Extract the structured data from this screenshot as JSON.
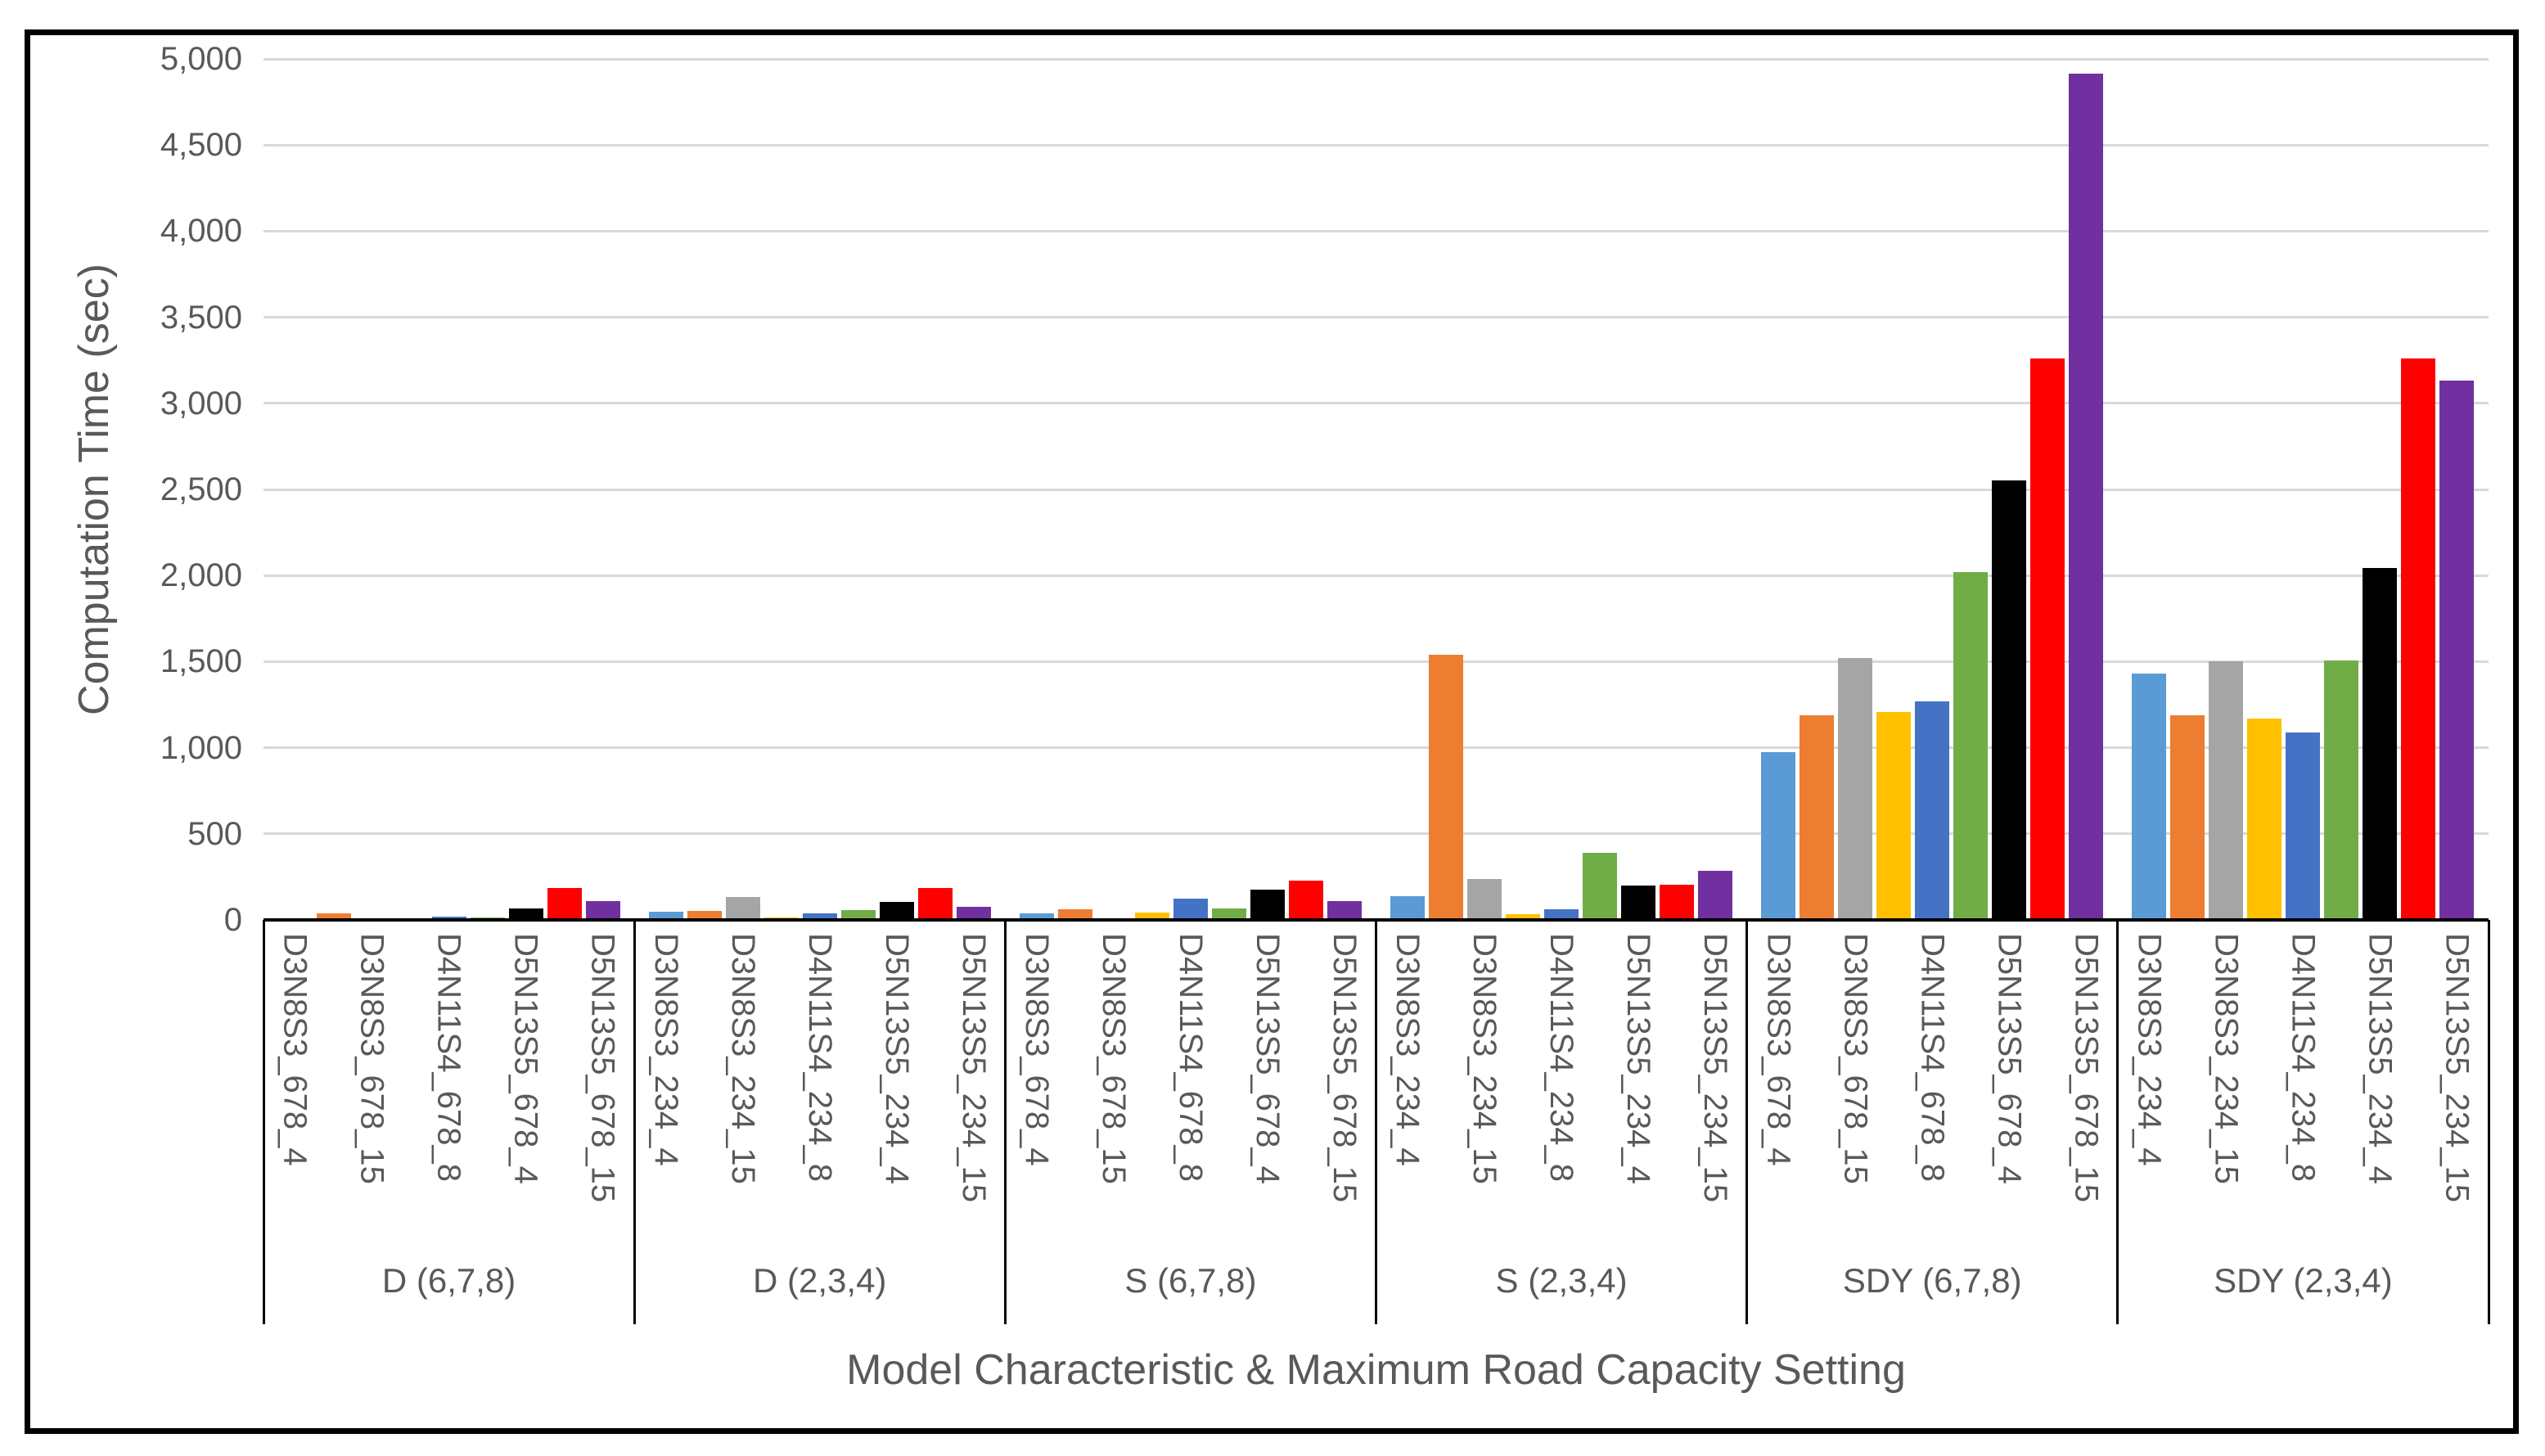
{
  "chart_data": {
    "type": "bar",
    "title": "",
    "xlabel": "Model Characteristic & Maximum Road Capacity Setting",
    "ylabel": "Computation Time (sec)",
    "ylim": [
      0,
      5000
    ],
    "ytick_interval": 500,
    "ytick_values": [
      0,
      500,
      1000,
      1500,
      2000,
      2500,
      3000,
      3500,
      4000,
      4500,
      5000
    ],
    "ytick_labels": [
      "0",
      "500",
      "1,000",
      "1,500",
      "2,000",
      "2,500",
      "3,000",
      "3,500",
      "4,000",
      "4,500",
      "5,000"
    ],
    "grid": true,
    "legend": false,
    "bars_per_group": 9,
    "visible_tick_positions": [
      0,
      2,
      4,
      6,
      8
    ],
    "bar_colors": [
      "#5B9BD5",
      "#ED7D31",
      "#A5A5A5",
      "#FFC000",
      "#4472C4",
      "#70AD47",
      "#000000",
      "#FF0000",
      "#7030A0"
    ],
    "groups": [
      {
        "label": "D (6,7,8)",
        "tick_labels": [
          "D3N8S3_678_4",
          "D3N8S3_678_15",
          "D4N11S4_678_8",
          "D5N13S5_678_4",
          "D5N13S5_678_15"
        ],
        "values": [
          4,
          40,
          3,
          3,
          20,
          12,
          65,
          185,
          110
        ]
      },
      {
        "label": "D (2,3,4)",
        "tick_labels": [
          "D3N8S3_234_4",
          "D3N8S3_234_15",
          "D4N11S4_234_8",
          "D5N13S5_234_4",
          "D5N13S5_234_15"
        ],
        "values": [
          48,
          52,
          135,
          15,
          40,
          57,
          105,
          185,
          78
        ]
      },
      {
        "label": "S (6,7,8)",
        "tick_labels": [
          "D3N8S3_678_4",
          "D3N8S3_678_15",
          "D4N11S4_678_8",
          "D5N13S5_678_4",
          "D5N13S5_678_15"
        ],
        "values": [
          37,
          62,
          10,
          44,
          122,
          65,
          175,
          230,
          110
        ]
      },
      {
        "label": "S (2,3,4)",
        "tick_labels": [
          "D3N8S3_234_4",
          "D3N8S3_234_15",
          "D4N11S4_234_8",
          "D5N13S5_234_4",
          "D5N13S5_234_15"
        ],
        "values": [
          140,
          1540,
          240,
          35,
          63,
          390,
          200,
          205,
          283
        ]
      },
      {
        "label": "SDY (6,7,8)",
        "tick_labels": [
          "D3N8S3_678_4",
          "D3N8S3_678_15",
          "D4N11S4_678_8",
          "D5N13S5_678_4",
          "D5N13S5_678_15"
        ],
        "values": [
          975,
          1190,
          1520,
          1205,
          1270,
          2020,
          2550,
          3260,
          4915
        ]
      },
      {
        "label": "SDY (2,3,4)",
        "tick_labels": [
          "D3N8S3_234_4",
          "D3N8S3_234_15",
          "D4N11S4_234_8",
          "D5N13S5_234_4",
          "D5N13S5_234_15"
        ],
        "values": [
          1430,
          1190,
          1500,
          1170,
          1090,
          1505,
          2045,
          3260,
          3130
        ]
      }
    ],
    "colors": {
      "text": "#595959",
      "gridline": "#D9D9D9",
      "axis_line": "#000000",
      "border": "#000000",
      "background": "#FFFFFF"
    }
  }
}
